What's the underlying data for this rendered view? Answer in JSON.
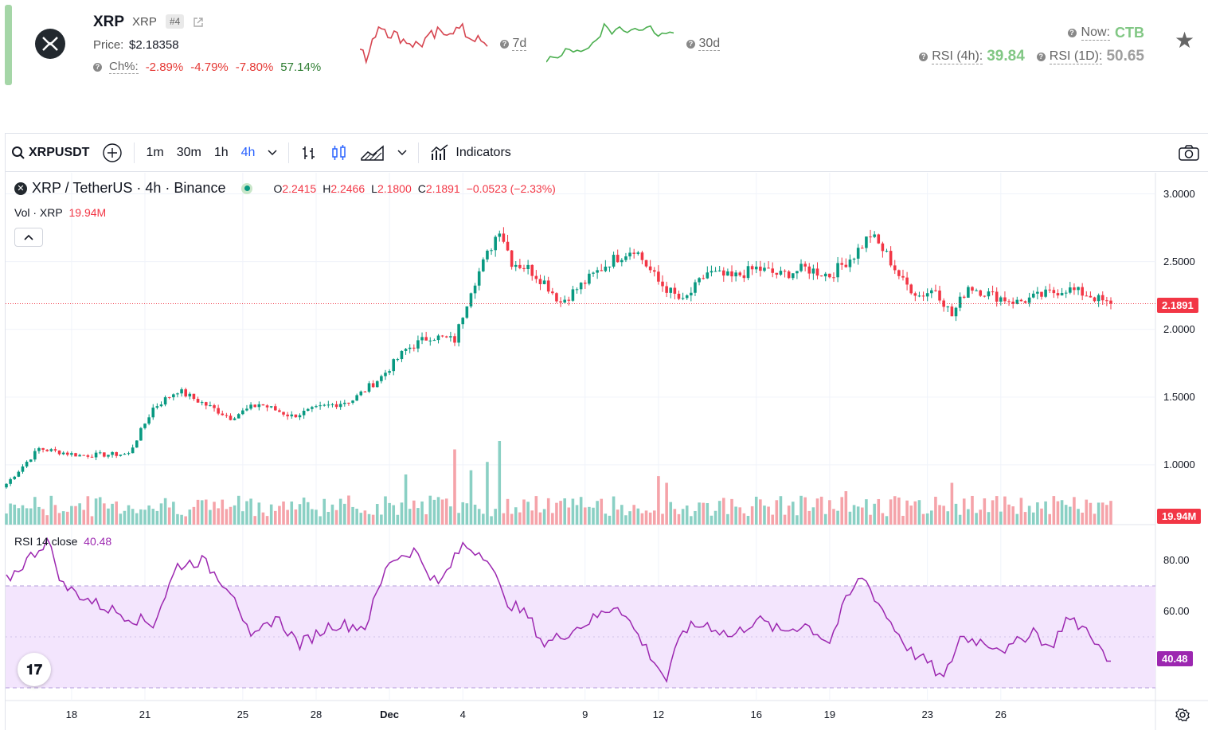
{
  "coin": {
    "name": "XRP",
    "ticker": "XRP",
    "rank": "#4",
    "price_label": "Price:",
    "price": "$2.18358",
    "ch_label": "Ch%:",
    "changes": [
      {
        "text": "-2.89%",
        "color": "#e53935"
      },
      {
        "text": "-4.79%",
        "color": "#e53935"
      },
      {
        "text": "-7.80%",
        "color": "#e53935"
      },
      {
        "text": "57.14%",
        "color": "#2e7d32"
      }
    ],
    "spark_7d_label": "7d",
    "spark_30d_label": "30d",
    "now_label": "Now:",
    "now_value": "CTB",
    "rsi4h_label": "RSI (4h):",
    "rsi4h_value": "39.84",
    "rsi1d_label": "RSI (1D):",
    "rsi1d_value": "50.65"
  },
  "toolbar": {
    "symbol": "XRPUSDT",
    "timeframes": [
      "1m",
      "30m",
      "1h",
      "4h"
    ],
    "active_timeframe": "4h",
    "indicators_label": "Indicators"
  },
  "legend": {
    "title": "XRP / TetherUS · 4h · Binance",
    "o_key": "O",
    "o_val": "2.2415",
    "h_key": "H",
    "h_val": "2.2466",
    "l_key": "L",
    "l_val": "2.1800",
    "c_key": "C",
    "c_val": "2.1891",
    "change": "−0.0523 (−2.33%)",
    "vol_label": "Vol · XRP",
    "vol_value": "19.94M",
    "rsi_label": "RSI 14 close",
    "rsi_value": "40.48"
  },
  "axis": {
    "price_ticks": [
      "3.0000",
      "2.5000",
      "2.0000",
      "1.5000",
      "1.0000"
    ],
    "current_price_tag": "2.1891",
    "volume_tag": "19.94M",
    "rsi_ticks": [
      "80.00",
      "60.00"
    ],
    "rsi_tag": "40.48",
    "time_ticks": [
      "18",
      "21",
      "25",
      "28",
      "Dec",
      "4",
      "9",
      "12",
      "16",
      "19",
      "23",
      "26"
    ]
  },
  "chart_data": {
    "type": "candlestick",
    "price_range": [
      0.7,
      3.05
    ],
    "rsi_range": [
      25,
      90
    ],
    "anchors_close": [
      [
        0,
        0.86
      ],
      [
        8,
        1.12
      ],
      [
        18,
        1.07
      ],
      [
        30,
        1.08
      ],
      [
        36,
        1.42
      ],
      [
        42,
        1.55
      ],
      [
        55,
        1.35
      ],
      [
        62,
        1.45
      ],
      [
        70,
        1.36
      ],
      [
        78,
        1.43
      ],
      [
        85,
        1.48
      ],
      [
        92,
        1.65
      ],
      [
        98,
        1.85
      ],
      [
        104,
        1.95
      ],
      [
        110,
        1.92
      ],
      [
        114,
        2.3
      ],
      [
        118,
        2.55
      ],
      [
        121,
        2.75
      ],
      [
        124,
        2.5
      ],
      [
        128,
        2.45
      ],
      [
        132,
        2.35
      ],
      [
        136,
        2.2
      ],
      [
        142,
        2.35
      ],
      [
        148,
        2.5
      ],
      [
        154,
        2.6
      ],
      [
        160,
        2.35
      ],
      [
        166,
        2.2
      ],
      [
        172,
        2.42
      ],
      [
        178,
        2.38
      ],
      [
        184,
        2.45
      ],
      [
        190,
        2.4
      ],
      [
        196,
        2.45
      ],
      [
        202,
        2.4
      ],
      [
        208,
        2.55
      ],
      [
        212,
        2.7
      ],
      [
        216,
        2.55
      ],
      [
        220,
        2.35
      ],
      [
        224,
        2.25
      ],
      [
        228,
        2.3
      ],
      [
        232,
        2.1
      ],
      [
        236,
        2.32
      ],
      [
        242,
        2.25
      ],
      [
        248,
        2.2
      ],
      [
        254,
        2.25
      ],
      [
        260,
        2.3
      ],
      [
        266,
        2.25
      ],
      [
        270,
        2.19
      ]
    ],
    "rsi_anchors": [
      [
        0,
        72
      ],
      [
        10,
        88
      ],
      [
        14,
        70
      ],
      [
        22,
        63
      ],
      [
        30,
        58
      ],
      [
        36,
        55
      ],
      [
        42,
        78
      ],
      [
        48,
        80
      ],
      [
        56,
        67
      ],
      [
        60,
        48
      ],
      [
        66,
        58
      ],
      [
        72,
        47
      ],
      [
        80,
        55
      ],
      [
        88,
        54
      ],
      [
        94,
        80
      ],
      [
        100,
        84
      ],
      [
        106,
        70
      ],
      [
        112,
        86
      ],
      [
        118,
        82
      ],
      [
        122,
        65
      ],
      [
        128,
        58
      ],
      [
        132,
        47
      ],
      [
        138,
        52
      ],
      [
        144,
        57
      ],
      [
        150,
        63
      ],
      [
        156,
        48
      ],
      [
        162,
        33
      ],
      [
        166,
        53
      ],
      [
        172,
        55
      ],
      [
        178,
        50
      ],
      [
        184,
        57
      ],
      [
        190,
        52
      ],
      [
        196,
        55
      ],
      [
        202,
        48
      ],
      [
        206,
        64
      ],
      [
        210,
        74
      ],
      [
        216,
        58
      ],
      [
        222,
        44
      ],
      [
        226,
        40
      ],
      [
        230,
        33
      ],
      [
        234,
        50
      ],
      [
        240,
        48
      ],
      [
        246,
        45
      ],
      [
        252,
        53
      ],
      [
        256,
        45
      ],
      [
        260,
        57
      ],
      [
        266,
        52
      ],
      [
        270,
        40
      ]
    ],
    "volume_spikes": [
      [
        98,
        0.6
      ],
      [
        110,
        0.9
      ],
      [
        114,
        0.65
      ],
      [
        118,
        0.75
      ],
      [
        121,
        1.0
      ],
      [
        160,
        0.58
      ],
      [
        162,
        0.5
      ],
      [
        206,
        0.4
      ],
      [
        232,
        0.5
      ]
    ]
  }
}
